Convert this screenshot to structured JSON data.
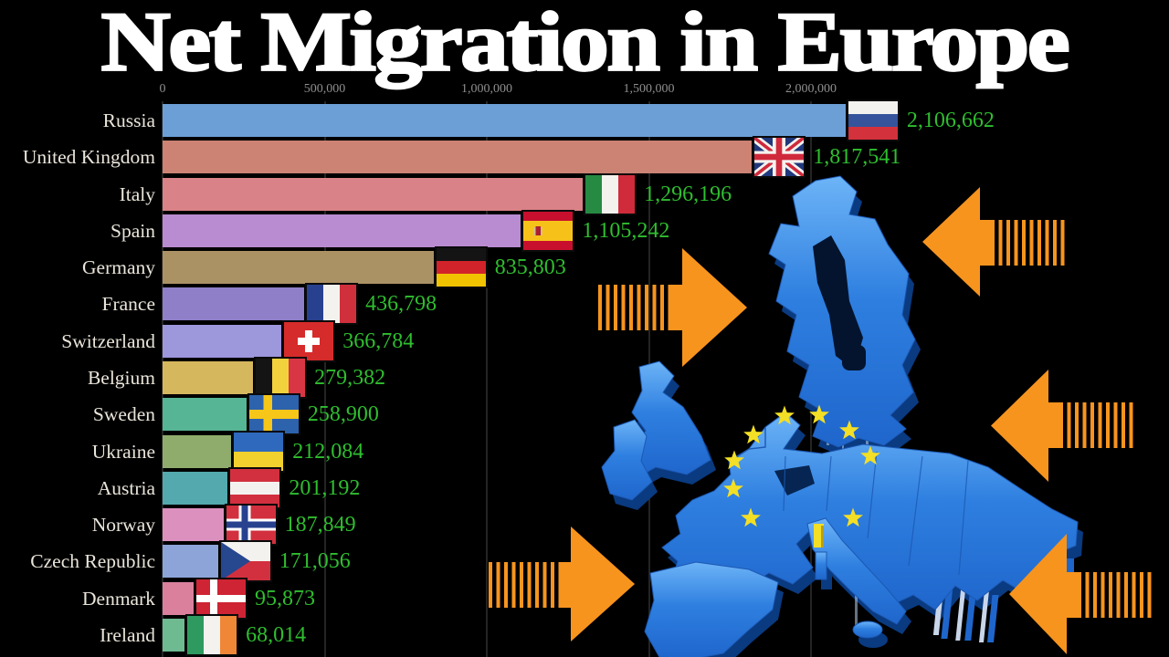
{
  "title": "Net Migration in Europe",
  "chart_data": {
    "type": "bar",
    "orientation": "horizontal",
    "title": "Net Migration in Europe",
    "categories": [
      "Russia",
      "United Kingdom",
      "Italy",
      "Spain",
      "Germany",
      "France",
      "Switzerland",
      "Belgium",
      "Sweden",
      "Ukraine",
      "Austria",
      "Norway",
      "Czech Republic",
      "Denmark",
      "Ireland"
    ],
    "values": [
      2106662,
      1817541,
      1296196,
      1105242,
      835803,
      436798,
      366784,
      279382,
      258900,
      212084,
      201192,
      187849,
      171056,
      95873,
      68014
    ],
    "value_labels": [
      "2,106,662",
      "1,817,541",
      "1,296,196",
      "1,105,242",
      "835,803",
      "436,798",
      "366,784",
      "279,382",
      "258,900",
      "212,084",
      "201,192",
      "187,849",
      "171,056",
      "95,873",
      "68,014"
    ],
    "flags": [
      "russia",
      "uk",
      "italy",
      "spain",
      "germany",
      "france",
      "switzerland",
      "belgium",
      "sweden",
      "ukraine",
      "austria",
      "norway",
      "czech",
      "denmark",
      "ireland"
    ],
    "bar_colors": [
      "#6c9fd6",
      "#cc8374",
      "#d98287",
      "#b98bd0",
      "#ab9265",
      "#8f7fc9",
      "#9d97dc",
      "#d5b75e",
      "#56b594",
      "#90ac6c",
      "#53a9ad",
      "#dc90bd",
      "#8ca4d8",
      "#da809d",
      "#6eba91"
    ],
    "x_tick_labels": [
      "0",
      "500,000",
      "1,000,000",
      "1,500,000",
      "2,000,000"
    ],
    "x_tick_values": [
      0,
      500000,
      1000000,
      1500000,
      2000000
    ],
    "xlim": [
      0,
      2140000
    ],
    "grid": true,
    "legend": false,
    "background": "#000000",
    "value_color": "#2fbe2f",
    "label_color": "#eae5da",
    "tick_color": "#8f8f8f"
  },
  "illustration": {
    "europe_map": {
      "base_color": "#2e7fe0",
      "highlight_color": "#6db4f7",
      "extrusion_color": "#0a3a80",
      "star_color": "#f3df25",
      "stars_visible": 9,
      "yellow_region_color": "#f3df25"
    },
    "arrows": {
      "color": "#f7941e",
      "pointing_right_count": 2,
      "pointing_left_count": 3
    }
  }
}
